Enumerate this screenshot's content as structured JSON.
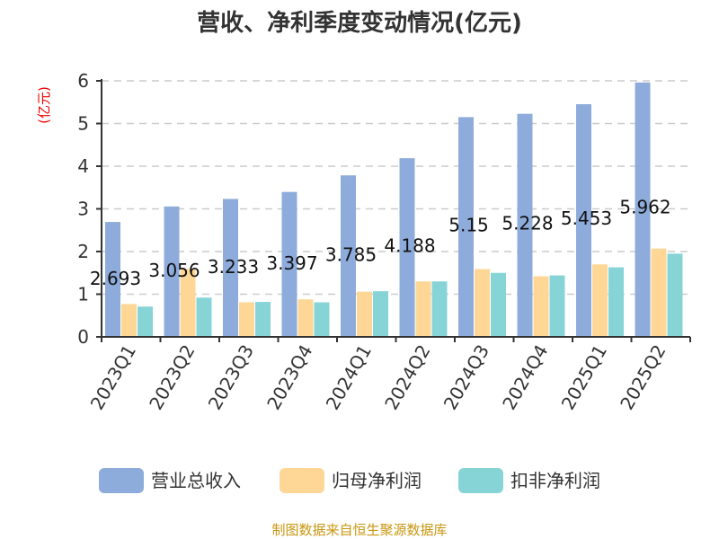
{
  "chart_data": {
    "type": "bar",
    "title": "营收、净利季度变动情况(亿元)",
    "ylabel": "(亿元)",
    "xlabel": "",
    "ylim": [
      0,
      6
    ],
    "yticks": [
      0,
      1,
      2,
      3,
      4,
      5,
      6
    ],
    "grid": true,
    "legend_position": "bottom",
    "categories": [
      "2023Q1",
      "2023Q2",
      "2023Q3",
      "2023Q4",
      "2024Q1",
      "2024Q2",
      "2024Q3",
      "2024Q4",
      "2025Q1",
      "2025Q2"
    ],
    "series": [
      {
        "name": "营业总收入",
        "color": "#8eacdb",
        "values": [
          2.693,
          3.056,
          3.233,
          3.397,
          3.785,
          4.188,
          5.15,
          5.228,
          5.453,
          5.962
        ],
        "labels": [
          "2.693",
          "3.056",
          "3.233",
          "3.397",
          "3.785",
          "4.188",
          "5.15",
          "5.228",
          "5.453",
          "5.962"
        ]
      },
      {
        "name": "归母净利润",
        "color": "#fed797",
        "values": [
          0.77,
          1.59,
          0.81,
          0.88,
          1.06,
          1.3,
          1.59,
          1.42,
          1.7,
          2.07
        ]
      },
      {
        "name": "扣非净利润",
        "color": "#87d4d7",
        "values": [
          0.71,
          0.92,
          0.82,
          0.81,
          1.07,
          1.3,
          1.5,
          1.44,
          1.63,
          1.95
        ]
      }
    ]
  },
  "source": "制图数据来自恒生聚源数据库"
}
